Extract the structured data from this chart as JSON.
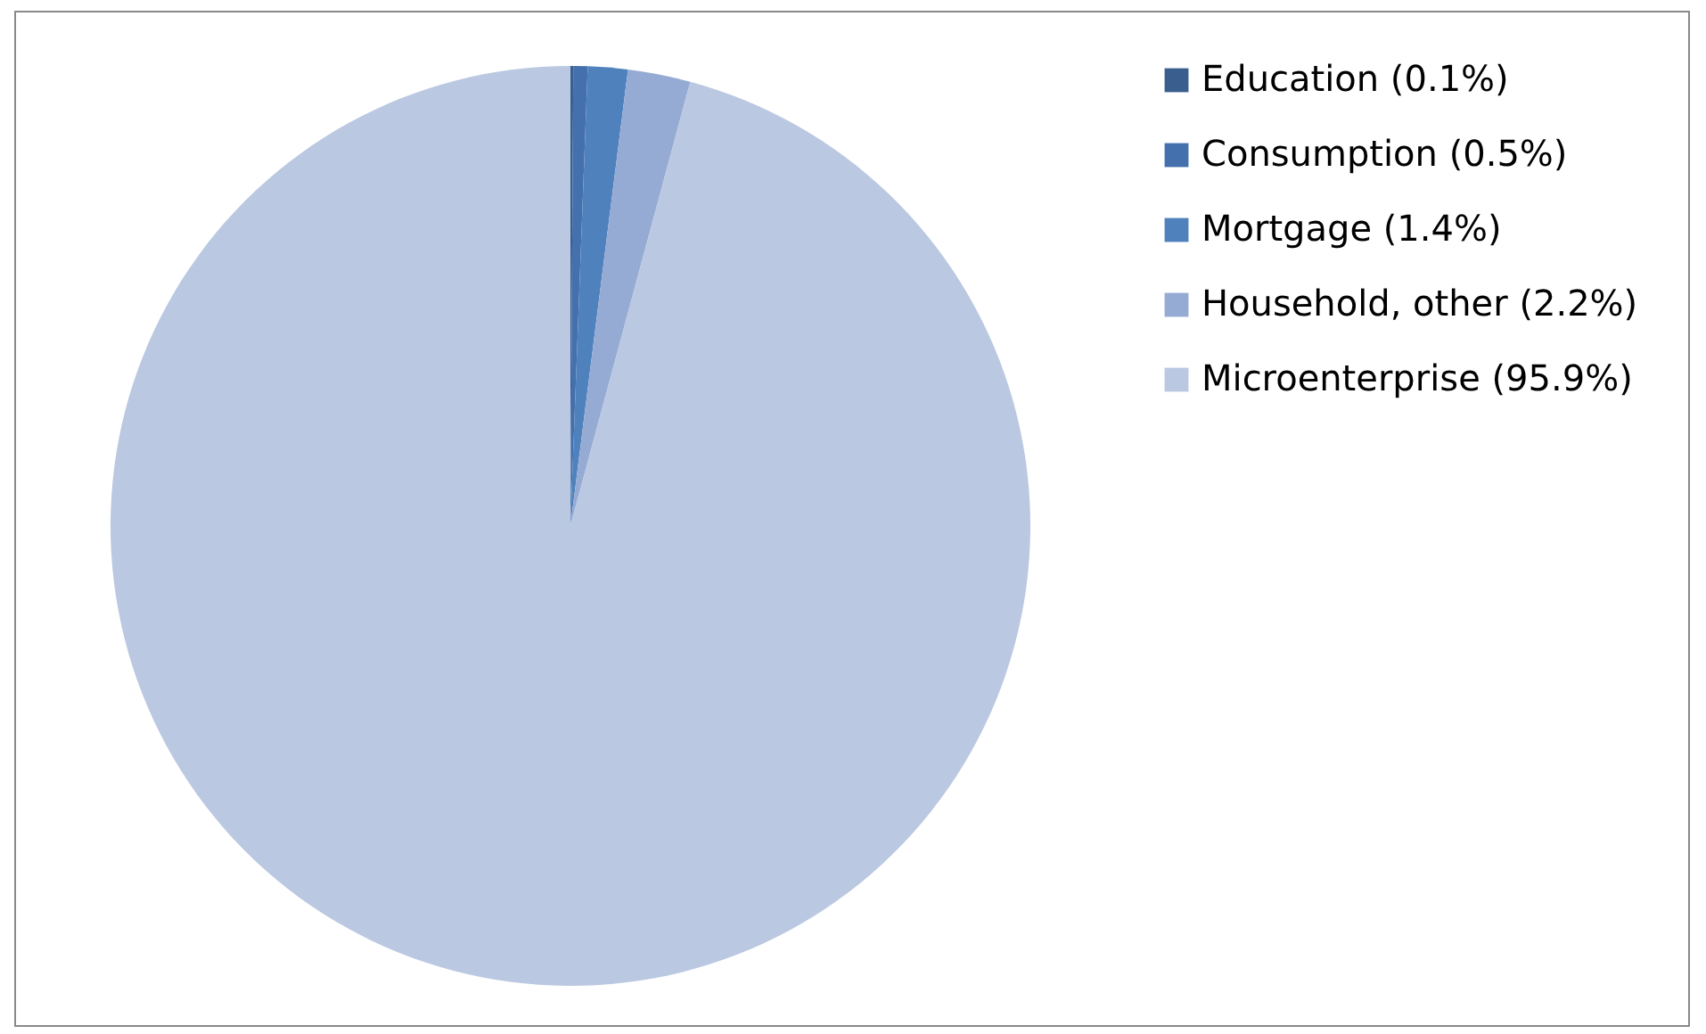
{
  "chart_data": {
    "type": "pie",
    "categories": [
      "Education (0.1%)",
      "Consumption (0.5%)",
      "Mortgage (1.4%)",
      "Household, other (2.2%)",
      "Microenterprise (95.9%)"
    ],
    "values": [
      0.1,
      0.5,
      1.4,
      2.2,
      95.9
    ],
    "colors": [
      "#3a5f8f",
      "#4470ad",
      "#4f81bd",
      "#95abd4",
      "#bac8e1"
    ],
    "legend": "right"
  }
}
